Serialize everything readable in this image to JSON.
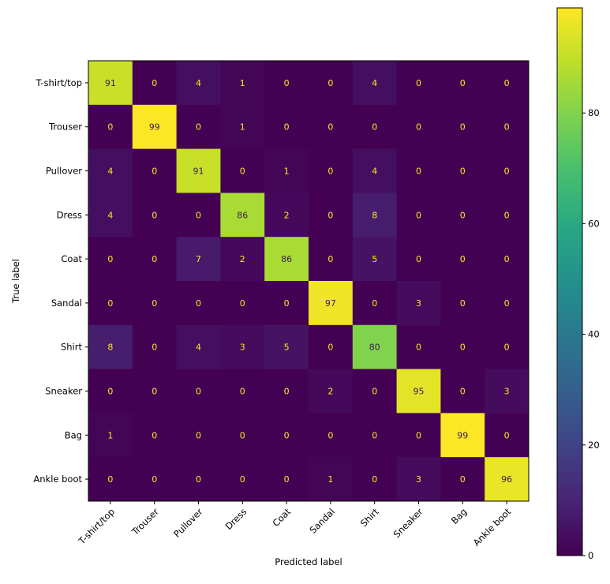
{
  "chart_data": {
    "type": "heatmap",
    "title": "",
    "xlabel": "Predicted label",
    "ylabel": "True label",
    "x_categories": [
      "T-shirt/top",
      "Trouser",
      "Pullover",
      "Dress",
      "Coat",
      "Sandal",
      "Shirt",
      "Sneaker",
      "Bag",
      "Ankle boot"
    ],
    "y_categories": [
      "T-shirt/top",
      "Trouser",
      "Pullover",
      "Dress",
      "Coat",
      "Sandal",
      "Shirt",
      "Sneaker",
      "Bag",
      "Ankle boot"
    ],
    "values": [
      [
        91,
        0,
        4,
        1,
        0,
        0,
        4,
        0,
        0,
        0
      ],
      [
        0,
        99,
        0,
        1,
        0,
        0,
        0,
        0,
        0,
        0
      ],
      [
        4,
        0,
        91,
        0,
        1,
        0,
        4,
        0,
        0,
        0
      ],
      [
        4,
        0,
        0,
        86,
        2,
        0,
        8,
        0,
        0,
        0
      ],
      [
        0,
        0,
        7,
        2,
        86,
        0,
        5,
        0,
        0,
        0
      ],
      [
        0,
        0,
        0,
        0,
        0,
        97,
        0,
        3,
        0,
        0
      ],
      [
        8,
        0,
        4,
        3,
        5,
        0,
        80,
        0,
        0,
        0
      ],
      [
        0,
        0,
        0,
        0,
        0,
        2,
        0,
        95,
        0,
        3
      ],
      [
        1,
        0,
        0,
        0,
        0,
        0,
        0,
        0,
        99,
        0
      ],
      [
        0,
        0,
        0,
        0,
        0,
        1,
        0,
        3,
        0,
        96
      ]
    ],
    "colormap": "viridis",
    "color_range": [
      0,
      99
    ],
    "colorbar_ticks": [
      0,
      20,
      40,
      60,
      80
    ],
    "colorbar_tick_labels": [
      "0",
      "20",
      "40",
      "60",
      "80"
    ],
    "colorbar_position": "right",
    "x_tick_rotation_deg": 45,
    "grid": false
  }
}
